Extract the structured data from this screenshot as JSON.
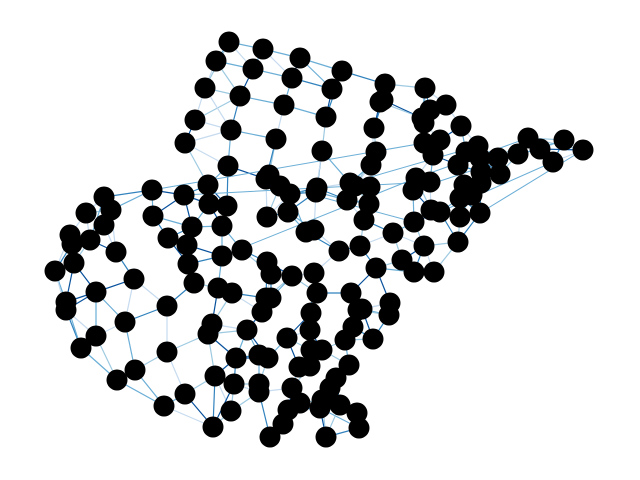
{
  "diagram": {
    "type": "network-graph",
    "description_visible_text": "",
    "node_color": "#000000",
    "edge_palette": [
      "#c6dbef",
      "#9ecae1",
      "#6baed6",
      "#3182bd",
      "#08519c"
    ],
    "background": "#ffffff"
  }
}
